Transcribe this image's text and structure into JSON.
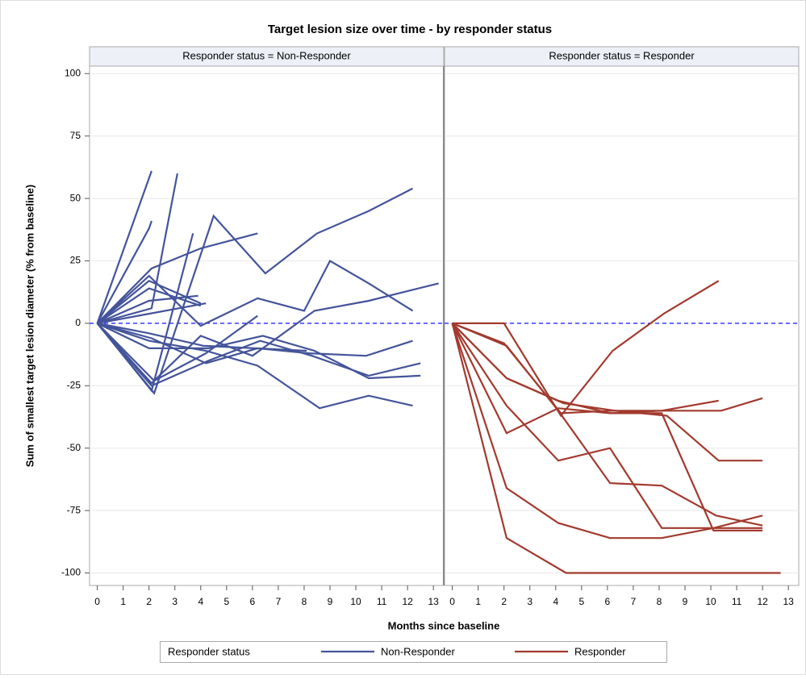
{
  "chart_data": {
    "type": "line",
    "title": "Target lesion size over time - by responder status",
    "xlabel": "Months since baseline",
    "ylabel": "Sum of smallest target lesion diameter (% from baseline)",
    "xlim": [
      -0.3,
      13.4
    ],
    "xticks": [
      0,
      1,
      2,
      3,
      4,
      5,
      6,
      7,
      8,
      9,
      10,
      11,
      12,
      13
    ],
    "ylim": [
      -105,
      103
    ],
    "yticks": [
      -100,
      -75,
      -50,
      -25,
      0,
      25,
      50,
      75,
      100
    ],
    "grid": true,
    "reference_line": 0,
    "legend": {
      "title": "Responder status",
      "position": "bottom"
    },
    "panels": [
      {
        "label": "Responder status = Non-Responder",
        "series": {
          "name": "Non-Responder",
          "color": "#44549a",
          "lines": [
            {
              "x": [
                0,
                2.1
              ],
              "values": [
                0,
                61
              ]
            },
            {
              "x": [
                0,
                2.1,
                3.1
              ],
              "values": [
                0,
                6,
                60
              ]
            },
            {
              "x": [
                0,
                2,
                2.1
              ],
              "values": [
                0,
                38,
                41
              ]
            },
            {
              "x": [
                0,
                2.1,
                3.7
              ],
              "values": [
                0,
                -27,
                36
              ]
            },
            {
              "x": [
                0,
                2.1,
                4,
                6.2
              ],
              "values": [
                0,
                22,
                30,
                36
              ]
            },
            {
              "x": [
                0,
                2.2,
                4.5,
                6.5,
                8.5,
                10.5,
                12.2
              ],
              "values": [
                0,
                -28,
                43,
                20,
                36,
                45,
                54
              ]
            },
            {
              "x": [
                0,
                2,
                4,
                6.2,
                8,
                9,
                10.5,
                12.2
              ],
              "values": [
                0,
                19,
                -1,
                10,
                5,
                25,
                16,
                5
              ]
            },
            {
              "x": [
                0,
                2.1,
                4,
                6,
                8.4,
                10.5,
                13.2
              ],
              "values": [
                0,
                -24,
                -5,
                -13,
                5,
                9,
                16
              ]
            },
            {
              "x": [
                0,
                2,
                3.9
              ],
              "values": [
                0,
                9,
                11
              ]
            },
            {
              "x": [
                0,
                2,
                4
              ],
              "values": [
                0,
                14,
                7
              ]
            },
            {
              "x": [
                0,
                2.1,
                4.2
              ],
              "values": [
                0,
                4,
                8
              ]
            },
            {
              "x": [
                0,
                2,
                4.3,
                6.4,
                8.4,
                10.5,
                12.5
              ],
              "values": [
                0,
                -10,
                -10,
                -5,
                -11,
                -22,
                -21
              ]
            },
            {
              "x": [
                0,
                2.1,
                4.2,
                6.2,
                8.2,
                10.4,
                12.2
              ],
              "values": [
                0,
                -6,
                -16,
                -10,
                -12,
                -13,
                -7
              ]
            },
            {
              "x": [
                0,
                2,
                4.2,
                6.2,
                8.6,
                10.5,
                12.2
              ],
              "values": [
                0,
                -7,
                -11,
                -17,
                -34,
                -29,
                -33
              ]
            },
            {
              "x": [
                0,
                2.1,
                4.3,
                6.3,
                8.3,
                10.5,
                12.5
              ],
              "values": [
                0,
                -25,
                -15,
                -7,
                -13,
                -21,
                -16
              ]
            },
            {
              "x": [
                0,
                2,
                4.1,
                6.1,
                8.1
              ],
              "values": [
                0,
                -4,
                -9,
                -10,
                -11
              ]
            },
            {
              "x": [
                0,
                2.2,
                4.2,
                6.2
              ],
              "values": [
                0,
                -23,
                -12,
                3
              ]
            },
            {
              "x": [
                0,
                2,
                4
              ],
              "values": [
                0,
                17,
                8
              ]
            }
          ]
        }
      },
      {
        "label": "Responder status = Responder",
        "series": {
          "name": "Responder",
          "color": "#a23a2e",
          "lines": [
            {
              "x": [
                0,
                2,
                4.2,
                6.2,
                8.2,
                10.3
              ],
              "values": [
                0,
                0,
                -37,
                -11,
                4,
                17
              ]
            },
            {
              "x": [
                0,
                2,
                4.2,
                6.2,
                8.3,
                10.4,
                12
              ],
              "values": [
                0,
                -8,
                -36,
                -35,
                -35,
                -35,
                -30
              ]
            },
            {
              "x": [
                0,
                2.1,
                4.1,
                6.1,
                8.1,
                10.3
              ],
              "values": [
                0,
                -22,
                -31,
                -36,
                -35,
                -31
              ]
            },
            {
              "x": [
                0,
                2.1,
                4.3,
                6.3,
                8.3,
                10.3,
                12
              ],
              "values": [
                0,
                -22,
                -32,
                -35,
                -37,
                -55,
                -55
              ]
            },
            {
              "x": [
                0,
                2.1,
                4.1,
                6.1,
                8.1,
                10.2,
                12
              ],
              "values": [
                0,
                -9,
                -35,
                -64,
                -65,
                -77,
                -81
              ]
            },
            {
              "x": [
                0,
                2.1,
                4.1,
                6.1,
                8.1,
                10.4,
                12
              ],
              "values": [
                0,
                -33,
                -55,
                -50,
                -82,
                -82,
                -82
              ]
            },
            {
              "x": [
                0,
                2.1,
                4.1,
                6.1,
                8.1,
                10.1,
                12
              ],
              "values": [
                0,
                -66,
                -80,
                -86,
                -86,
                -82,
                -77
              ]
            },
            {
              "x": [
                0,
                2.1,
                4.4,
                6.4,
                8.4,
                10.4,
                12.7
              ],
              "values": [
                0,
                -86,
                -100,
                -100,
                -100,
                -100,
                -100
              ]
            },
            {
              "x": [
                0,
                2.1,
                4.1,
                6.1,
                8.1,
                10.1,
                12
              ],
              "values": [
                0,
                -44,
                -34,
                -36,
                -36,
                -83,
                -83
              ]
            }
          ]
        }
      }
    ]
  }
}
